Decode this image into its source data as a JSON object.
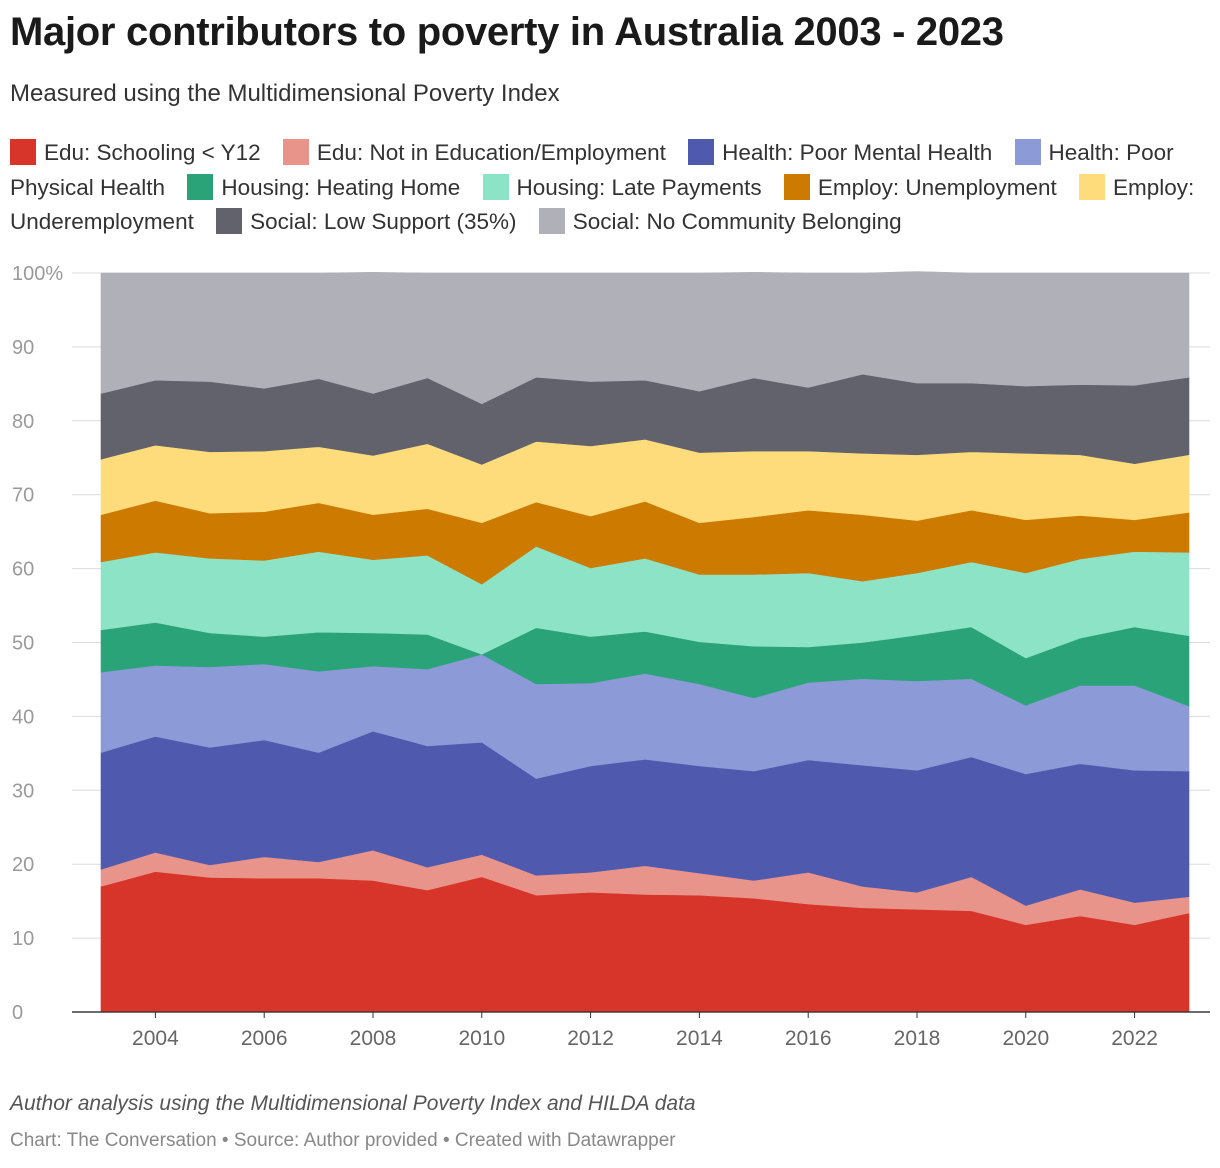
{
  "header": {
    "title": "Major contributors to poverty in Australia 2003 - 2023",
    "subtitle": "Measured using the Multidimensional Poverty Index"
  },
  "footer": {
    "note": "Author analysis using the Multidimensional Poverty Index and HILDA data",
    "source": "Chart: The Conversation • Source: Author provided • Created with Datawrapper"
  },
  "chart_data": {
    "type": "area",
    "stacked": true,
    "title": "Major contributors to poverty in Australia 2003 - 2023",
    "subtitle": "Measured using the Multidimensional Poverty Index",
    "x": [
      2003,
      2004,
      2005,
      2006,
      2007,
      2008,
      2009,
      2010,
      2011,
      2012,
      2013,
      2014,
      2015,
      2016,
      2017,
      2018,
      2019,
      2020,
      2021,
      2022,
      2023
    ],
    "x_ticks": [
      "2004",
      "2006",
      "2008",
      "2010",
      "2012",
      "2014",
      "2016",
      "2018",
      "2020",
      "2022"
    ],
    "y_ticks": [
      "0",
      "10",
      "20",
      "30",
      "40",
      "50",
      "60",
      "70",
      "80",
      "90",
      "100%"
    ],
    "ylim": [
      0,
      100
    ],
    "grid": true,
    "legend": "top",
    "series": [
      {
        "name": "Edu: Schooling < Y12",
        "color": "#d7342a",
        "values": [
          17.0,
          19.0,
          18.2,
          18.1,
          18.1,
          17.8,
          16.5,
          18.3,
          15.8,
          16.2,
          15.9,
          15.8,
          15.4,
          14.6,
          14.1,
          13.9,
          13.7,
          11.8,
          13.0,
          11.8,
          13.4
        ]
      },
      {
        "name": "Edu: Not in Education/Employment",
        "color": "#e8948b",
        "values": [
          2.3,
          2.6,
          1.7,
          2.9,
          2.2,
          4.1,
          3.1,
          3.0,
          2.7,
          2.7,
          3.9,
          3.0,
          2.4,
          4.3,
          2.9,
          2.3,
          4.6,
          2.6,
          3.6,
          3.0,
          2.2
        ]
      },
      {
        "name": "Health: Poor Mental Health",
        "color": "#4f5aaf",
        "values": [
          15.8,
          15.7,
          15.9,
          15.8,
          14.8,
          16.1,
          16.4,
          15.2,
          13.1,
          14.4,
          14.4,
          14.5,
          14.8,
          15.2,
          16.4,
          16.5,
          16.2,
          17.8,
          17.0,
          17.9,
          17.0
        ]
      },
      {
        "name": "Health: Poor Physical Health",
        "color": "#8c9ad7",
        "values": [
          10.9,
          9.6,
          10.9,
          10.3,
          11.0,
          8.8,
          10.4,
          11.9,
          12.8,
          11.2,
          11.6,
          11.1,
          9.9,
          10.5,
          11.7,
          12.1,
          10.6,
          9.3,
          10.6,
          11.5,
          8.8
        ]
      },
      {
        "name": "Housing: Heating Home",
        "color": "#2ba379",
        "values": [
          5.7,
          5.8,
          4.6,
          3.7,
          5.3,
          4.5,
          4.7,
          0.0,
          7.6,
          6.3,
          5.7,
          5.7,
          7.0,
          4.8,
          4.9,
          6.2,
          7.0,
          6.4,
          6.4,
          7.9,
          9.5
        ]
      },
      {
        "name": "Housing: Late Payments",
        "color": "#8de3c6",
        "values": [
          9.2,
          9.5,
          10.1,
          10.3,
          10.9,
          9.9,
          10.7,
          9.5,
          11.0,
          9.3,
          9.9,
          9.1,
          9.7,
          10.0,
          8.3,
          8.4,
          8.8,
          11.5,
          10.7,
          10.2,
          11.3
        ]
      },
      {
        "name": "Employ: Unemployment",
        "color": "#cd7a00",
        "values": [
          6.4,
          7.0,
          6.1,
          6.6,
          6.6,
          6.1,
          6.3,
          8.3,
          6.0,
          7.0,
          7.7,
          7.0,
          7.8,
          8.5,
          9.0,
          7.1,
          7.0,
          7.2,
          5.9,
          4.3,
          5.4
        ]
      },
      {
        "name": "Employ: Underemployment",
        "color": "#fedc7b",
        "values": [
          7.5,
          7.5,
          8.3,
          8.2,
          7.6,
          8.0,
          8.8,
          7.9,
          8.2,
          9.5,
          8.4,
          9.5,
          8.9,
          8.0,
          8.3,
          8.9,
          7.9,
          9.0,
          8.2,
          7.6,
          7.8
        ]
      },
      {
        "name": "Social: Low Support (35%)",
        "color": "#62626d",
        "values": [
          8.9,
          8.8,
          9.5,
          8.5,
          9.2,
          8.4,
          8.9,
          8.2,
          8.7,
          8.7,
          8.0,
          8.3,
          9.9,
          8.6,
          10.7,
          9.7,
          9.3,
          9.1,
          9.5,
          10.6,
          10.5
        ]
      },
      {
        "name": "Social: No Community Belonging",
        "color": "#b0b0b8",
        "values": [
          16.3,
          14.5,
          14.7,
          15.6,
          14.3,
          16.4,
          14.2,
          17.7,
          14.1,
          14.7,
          14.5,
          16.0,
          14.3,
          15.5,
          13.7,
          15.1,
          14.9,
          15.3,
          15.1,
          15.2,
          14.1
        ]
      }
    ]
  }
}
